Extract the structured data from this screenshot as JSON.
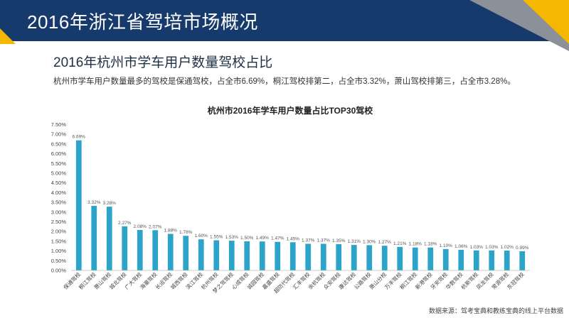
{
  "header": {
    "title": "2016年浙江省驾培市场概况"
  },
  "section": {
    "subtitle": "2016年杭州市学车用户数量驾校占比",
    "description": "杭州市学车用户数量最多的驾校是保通驾校，占全市6.69%，桐江驾校排第二，占全市3.32%，萧山驾校排第三，占全市3.28%。"
  },
  "source": "数据来源：驾考宝典和教练宝典的线上平台数据",
  "colors": {
    "header": "#163a6b",
    "accent_yellow": "#f5b800",
    "accent_gray": "#8c9098",
    "bar": "#2ca3c9"
  },
  "chart_data": {
    "type": "bar",
    "title": "杭州市2016年学车用户数量占比TOP30驾校",
    "categories": [
      "保通驾校",
      "桐江驾校",
      "萧山驾校",
      "城北驾校",
      "广大驾校",
      "海豪驾校",
      "长运驾校",
      "城西驾校",
      "滨江驾校",
      "杭州驾校",
      "梦之驾驾校",
      "心成驾校",
      "诚园驾校",
      "嘉盛驾校",
      "超防代驾校",
      "汇丰驾校",
      "余杭驾校",
      "众安驾校",
      "康达驾校",
      "公路驾校",
      "萧山分校",
      "万丰驾校",
      "桐江驾校",
      "新港驾校",
      "牙安驾校",
      "华数驾校",
      "杭新驾校",
      "凤龙驾校",
      "常源驾校",
      "东冠驾校"
    ],
    "values": [
      6.69,
      3.32,
      3.28,
      2.27,
      2.08,
      2.07,
      1.88,
      1.78,
      1.6,
      1.55,
      1.53,
      1.5,
      1.49,
      1.47,
      1.45,
      1.37,
      1.37,
      1.35,
      1.31,
      1.3,
      1.27,
      1.21,
      1.18,
      1.18,
      1.1,
      1.06,
      1.03,
      1.03,
      1.02,
      0.99
    ],
    "data_labels": [
      "6.69%",
      "3.32%",
      "3.28%",
      "2.27%",
      "2.08%",
      "2.07%",
      "1.88%",
      "1.78%",
      "1.60%",
      "1.55%",
      "1.53%",
      "1.50%",
      "1.49%",
      "1.47%",
      "1.45%",
      "1.37%",
      "1.37%",
      "1.35%",
      "1.31%",
      "1.30%",
      "1.27%",
      "1.21%",
      "1.18%",
      "1.18%",
      "1.10%",
      "1.06%",
      "1.03%",
      "1.03%",
      "1.02%",
      "0.99%"
    ],
    "yticks": [
      "0.00%",
      "0.50%",
      "1.00%",
      "1.50%",
      "2.00%",
      "2.50%",
      "3.00%",
      "3.50%",
      "4.00%",
      "4.50%",
      "5.00%",
      "5.50%",
      "6.00%",
      "6.50%",
      "7.00%",
      "7.50%"
    ],
    "ylim": [
      0,
      7.5
    ],
    "grid": false,
    "legend": "none"
  }
}
